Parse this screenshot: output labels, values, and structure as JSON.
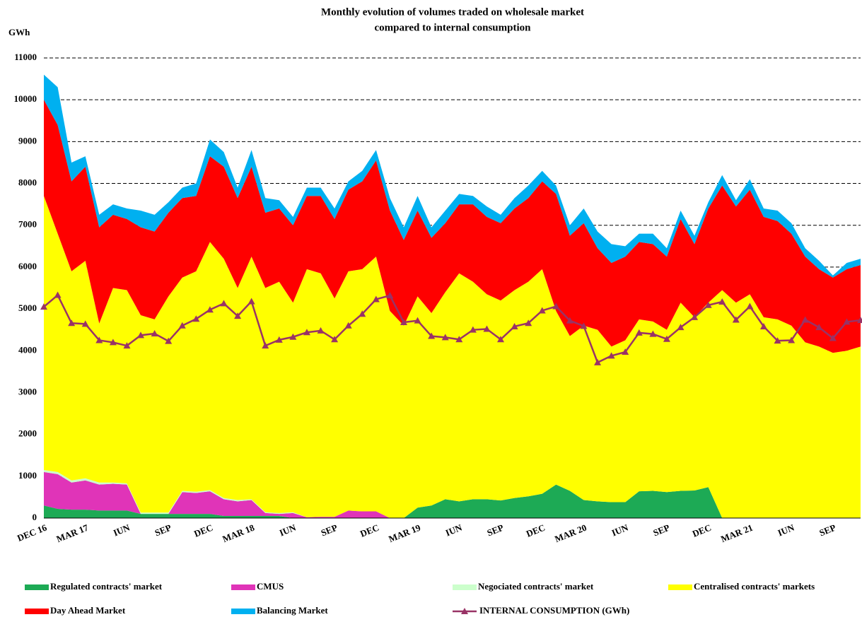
{
  "chart_data": {
    "type": "stacked-area",
    "title": [
      "Monthly evolution of volumes traded on wholesale market",
      "compared to internal consumption"
    ],
    "y_unit": "GWh",
    "categories": [
      "DEC 16",
      null,
      null,
      "MAR 17",
      null,
      null,
      "IUN",
      null,
      null,
      "SEP",
      null,
      null,
      "DEC",
      null,
      null,
      "MAR 18",
      null,
      null,
      "IUN",
      null,
      null,
      "SEP",
      null,
      null,
      "DEC",
      null,
      null,
      "MAR 19",
      null,
      null,
      "IUN",
      null,
      null,
      "SEP",
      null,
      null,
      "DEC",
      null,
      null,
      "MAR 20",
      null,
      null,
      "IUN",
      null,
      null,
      "SEP",
      null,
      null,
      "DEC",
      null,
      null,
      "MAR 21",
      null,
      null,
      "IUN",
      null,
      null,
      "SEP",
      null,
      null
    ],
    "ylim": [
      0,
      11000
    ],
    "yticks": [
      0,
      1000,
      2000,
      3000,
      4000,
      5000,
      6000,
      7000,
      8000,
      9000,
      10000,
      11000
    ],
    "grid": true,
    "series": [
      {
        "name": "Regulated contracts' market",
        "color": "#1daa55",
        "values": [
          300,
          220,
          200,
          200,
          180,
          180,
          180,
          100,
          100,
          100,
          100,
          100,
          100,
          50,
          50,
          50,
          50,
          50,
          0,
          0,
          0,
          0,
          0,
          0,
          0,
          0,
          0,
          250,
          300,
          450,
          400,
          450,
          450,
          420,
          480,
          520,
          580,
          800,
          650,
          430,
          400,
          380,
          380,
          640,
          650,
          620,
          650,
          660,
          740,
          0,
          0,
          0,
          0,
          0,
          0,
          0,
          0,
          0,
          0,
          0
        ]
      },
      {
        "name": "CMUS",
        "color": "#e034b8",
        "values": [
          800,
          830,
          650,
          700,
          620,
          640,
          620,
          0,
          0,
          0,
          520,
          500,
          540,
          400,
          350,
          380,
          70,
          50,
          120,
          20,
          30,
          30,
          180,
          160,
          160,
          0,
          0,
          0,
          0,
          0,
          0,
          0,
          0,
          0,
          0,
          0,
          0,
          0,
          0,
          0,
          0,
          0,
          0,
          0,
          0,
          0,
          0,
          0,
          0,
          0,
          0,
          0,
          0,
          0,
          0,
          0,
          0,
          0,
          0,
          0
        ]
      },
      {
        "name": "Negociated contracts' market",
        "color": "#ccffcc",
        "values": [
          50,
          50,
          50,
          50,
          50,
          30,
          30,
          30,
          30,
          30,
          30,
          30,
          30,
          30,
          30,
          20,
          20,
          20,
          20,
          0,
          0,
          0,
          0,
          0,
          0,
          0,
          0,
          0,
          0,
          0,
          0,
          0,
          0,
          0,
          0,
          0,
          0,
          0,
          0,
          0,
          0,
          0,
          0,
          0,
          0,
          0,
          0,
          0,
          0,
          0,
          0,
          0,
          0,
          0,
          0,
          0,
          0,
          0,
          0,
          0
        ]
      },
      {
        "name": "Centralised contracts' markets",
        "color": "#ffff00",
        "values": [
          6550,
          5700,
          5000,
          5200,
          3800,
          4650,
          4620,
          4720,
          4620,
          5170,
          5100,
          5270,
          5930,
          5720,
          5070,
          5800,
          5360,
          5530,
          5010,
          5930,
          5820,
          5220,
          5720,
          5790,
          6090,
          4950,
          4600,
          5050,
          4600,
          4950,
          5450,
          5200,
          4900,
          4780,
          4970,
          5130,
          5370,
          4150,
          3700,
          4170,
          4100,
          3720,
          3870,
          4110,
          4050,
          3880,
          4500,
          4140,
          4410,
          5450,
          5150,
          5350,
          4800,
          4750,
          4600,
          4200,
          4100,
          3950,
          4000,
          4100
        ]
      },
      {
        "name": "Day Ahead Market",
        "color": "#ff0000",
        "values": [
          2300,
          2600,
          2150,
          2250,
          2300,
          1750,
          1700,
          2100,
          2100,
          2000,
          1900,
          1800,
          2050,
          2200,
          2150,
          2150,
          1800,
          1750,
          1850,
          1750,
          1850,
          1900,
          1950,
          2100,
          2300,
          2400,
          2050,
          2050,
          1800,
          1650,
          1650,
          1850,
          1850,
          1850,
          1950,
          2000,
          2100,
          2800,
          2400,
          2450,
          1950,
          2000,
          2000,
          1850,
          1850,
          1750,
          2000,
          1750,
          2250,
          2500,
          2300,
          2500,
          2400,
          2350,
          2200,
          2050,
          1850,
          1800,
          1950,
          1950
        ]
      },
      {
        "name": "Balancing Market",
        "color": "#00b0f0",
        "values": [
          600,
          900,
          450,
          250,
          300,
          250,
          250,
          400,
          400,
          250,
          250,
          300,
          400,
          350,
          250,
          400,
          350,
          200,
          200,
          200,
          200,
          250,
          200,
          250,
          250,
          300,
          300,
          350,
          250,
          300,
          250,
          200,
          250,
          200,
          250,
          300,
          250,
          200,
          250,
          350,
          400,
          450,
          250,
          200,
          250,
          200,
          200,
          200,
          150,
          250,
          150,
          250,
          200,
          250,
          250,
          200,
          200,
          50,
          150,
          150
        ]
      }
    ],
    "line_series": {
      "name": "INTERNAL CONSUMPTION (GWh)",
      "color": "#993366",
      "values": [
        5050,
        5330,
        4660,
        4640,
        4250,
        4200,
        4120,
        4370,
        4410,
        4230,
        4600,
        4760,
        4980,
        5130,
        4830,
        5180,
        4120,
        4260,
        4330,
        4440,
        4480,
        4270,
        4600,
        4880,
        5230,
        5320,
        4680,
        4720,
        4350,
        4320,
        4270,
        4500,
        4520,
        4270,
        4580,
        4660,
        4960,
        5060,
        4720,
        4590,
        3720,
        3880,
        3970,
        4430,
        4400,
        4280,
        4560,
        4800,
        5090,
        5170,
        4740,
        5060,
        4580,
        4240,
        4250,
        4740,
        4560,
        4300,
        4690,
        4730
      ]
    }
  }
}
